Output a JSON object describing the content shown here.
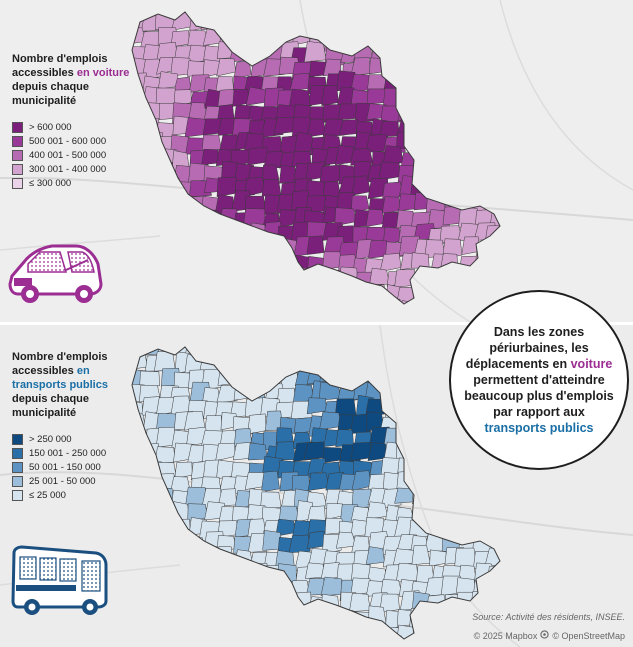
{
  "map_car": {
    "legend_title": {
      "part1": "Nombre d'emplois accessibles ",
      "highlight1": "en voiture",
      "part2": " depuis chaque municipalité"
    },
    "classes": [
      {
        "label": "> 600 000",
        "color": "#7a1f7a"
      },
      {
        "label": "500 001 - 600 000",
        "color": "#9a3a98"
      },
      {
        "label": "400 001 - 500 000",
        "color": "#b76bb3"
      },
      {
        "label": "300 001 - 400 000",
        "color": "#d3a3cf"
      },
      {
        "label": "≤ 300 000",
        "color": "#ead3e8"
      }
    ],
    "icon": "car-icon"
  },
  "map_transit": {
    "legend_title": {
      "part1": "Nombre d'emplois accessibles ",
      "highlight1": "en transports publics",
      "part2": " depuis chaque municipalité"
    },
    "classes": [
      {
        "label": "> 250 000",
        "color": "#0e4a80"
      },
      {
        "label": "150 001 - 250 000",
        "color": "#2a6fa8"
      },
      {
        "label": "50 001 - 150 000",
        "color": "#5d93c2"
      },
      {
        "label": "25 001 - 50 000",
        "color": "#9cbedb"
      },
      {
        "label": "≤ 25 000",
        "color": "#d6e4ef"
      }
    ],
    "icon": "bus-icon"
  },
  "callout": {
    "part1": "Dans les zones périurbaines, les déplacements en ",
    "highlight1": "voiture",
    "part2": " permettent d'atteindre beaucoup plus d'emplois par rapport aux ",
    "highlight2": "transports publics"
  },
  "source": "Source: Activité des résidents, INSEE.",
  "attribution": {
    "mapbox": "© 2025 Mapbox",
    "osm": "© OpenStreetMap"
  },
  "colors": {
    "car_accent": "#9b2d93",
    "transit_accent": "#1a6fa6",
    "region_border": "#3a3a3a"
  }
}
